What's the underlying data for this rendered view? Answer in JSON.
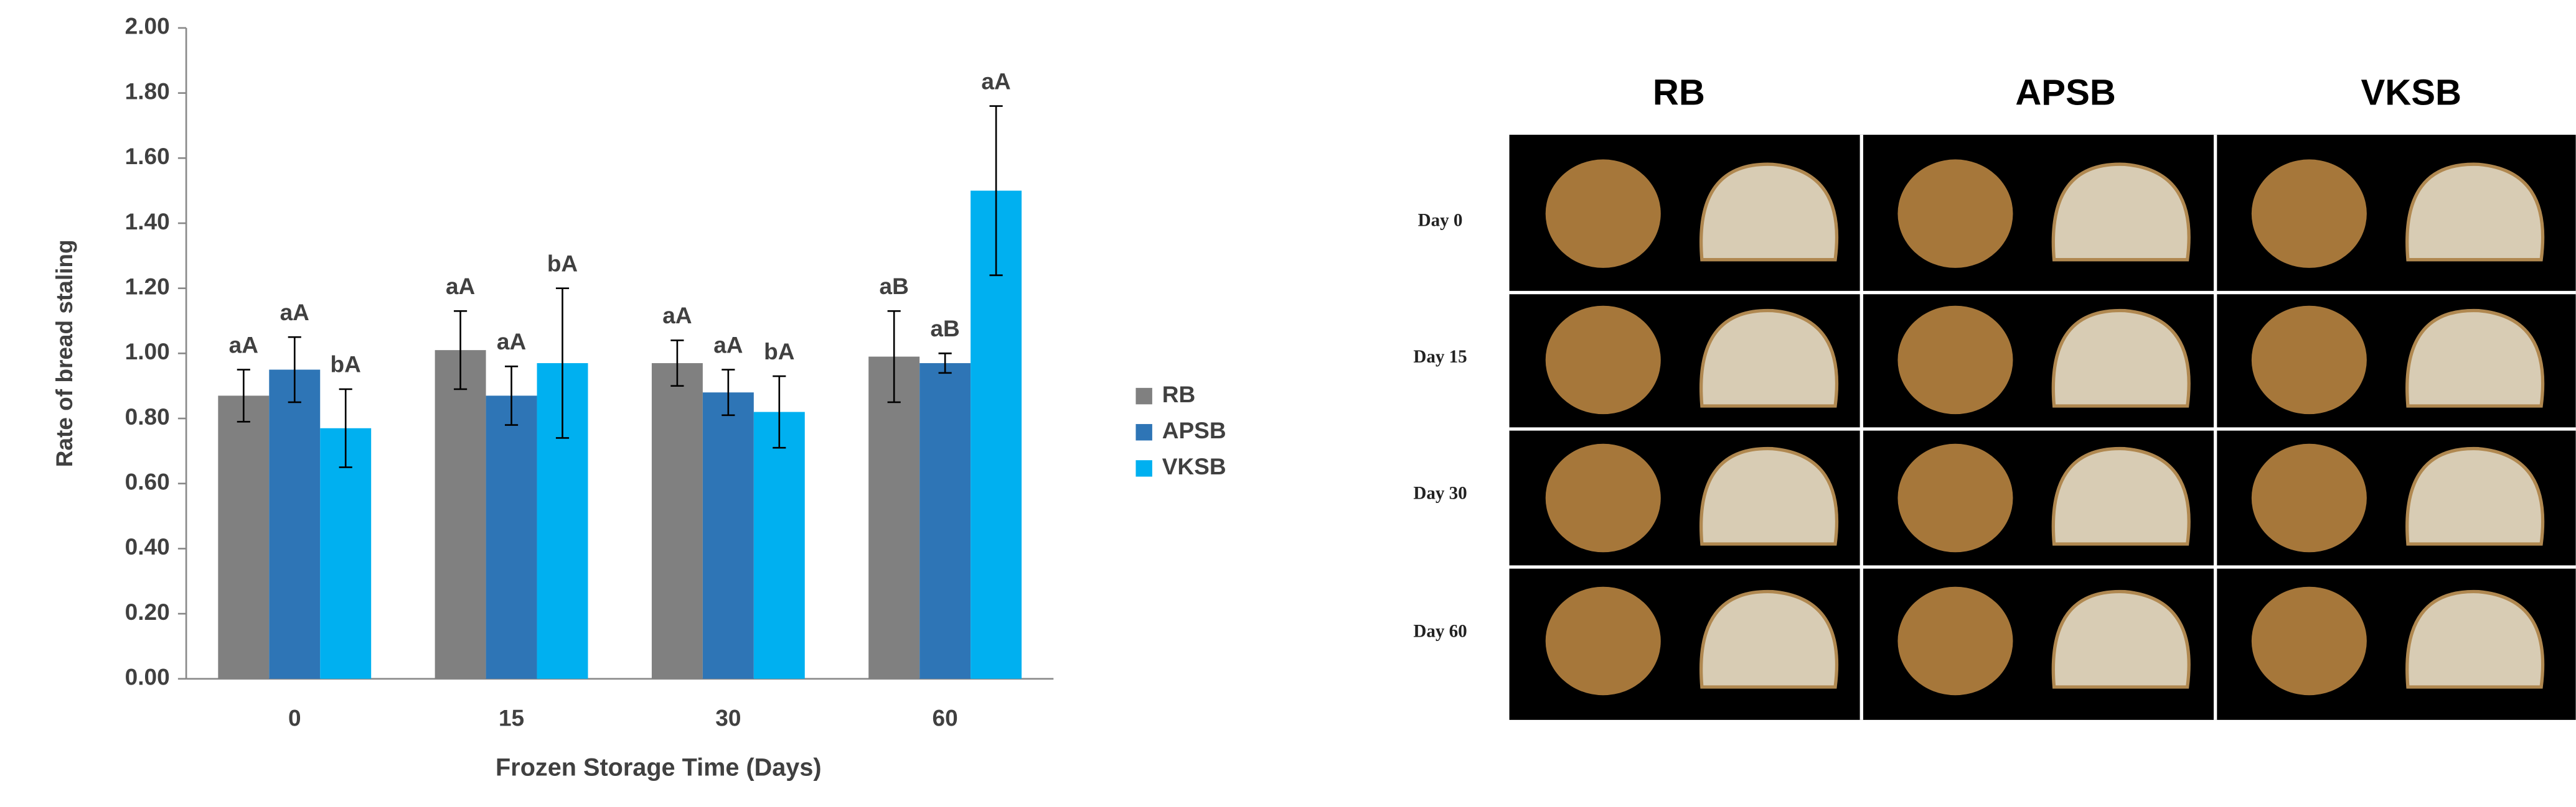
{
  "chart_data": {
    "type": "bar",
    "x_label": "Frozen Storage Time (Days)",
    "y_label": "Rate of bread staling",
    "categories": [
      "0",
      "15",
      "30",
      "60"
    ],
    "series": [
      {
        "name": "RB",
        "color": "#808080",
        "values": [
          0.87,
          1.01,
          0.97,
          0.99
        ],
        "errors": [
          0.08,
          0.12,
          0.07,
          0.14
        ],
        "significance": [
          "aA",
          "aA",
          "aA",
          "aB"
        ]
      },
      {
        "name": "APSB",
        "color": "#2e75b6",
        "values": [
          0.95,
          0.87,
          0.88,
          0.97
        ],
        "errors": [
          0.1,
          0.09,
          0.07,
          0.03
        ],
        "significance": [
          "aA",
          "aA",
          "aA",
          "aB"
        ]
      },
      {
        "name": "VKSB",
        "color": "#00b0f0",
        "values": [
          0.77,
          0.97,
          0.82,
          1.5
        ],
        "errors": [
          0.12,
          0.23,
          0.11,
          0.26
        ],
        "significance": [
          "bA",
          "bA",
          "bA",
          "aA"
        ]
      }
    ],
    "ylim": [
      0,
      2
    ],
    "yticks": [
      {
        "value": 0,
        "label": "0.00"
      },
      {
        "value": 0.2,
        "label": "0.20"
      },
      {
        "value": 0.4,
        "label": "0.40"
      },
      {
        "value": 0.6,
        "label": "0.60"
      },
      {
        "value": 0.8,
        "label": "0.80"
      },
      {
        "value": 1.0,
        "label": "1.00"
      },
      {
        "value": 1.2,
        "label": "1.20"
      },
      {
        "value": 1.4,
        "label": "1.40"
      },
      {
        "value": 1.6,
        "label": "1.60"
      },
      {
        "value": 1.8,
        "label": "1.80"
      },
      {
        "value": 2.0,
        "label": "2.00"
      }
    ],
    "grid": false,
    "legend": "right"
  },
  "photo_panel": {
    "columns": [
      "RB",
      "APSB",
      "VKSB"
    ],
    "rows": [
      "Day 0",
      "Day 15",
      "Day 30",
      "Day 60"
    ]
  }
}
